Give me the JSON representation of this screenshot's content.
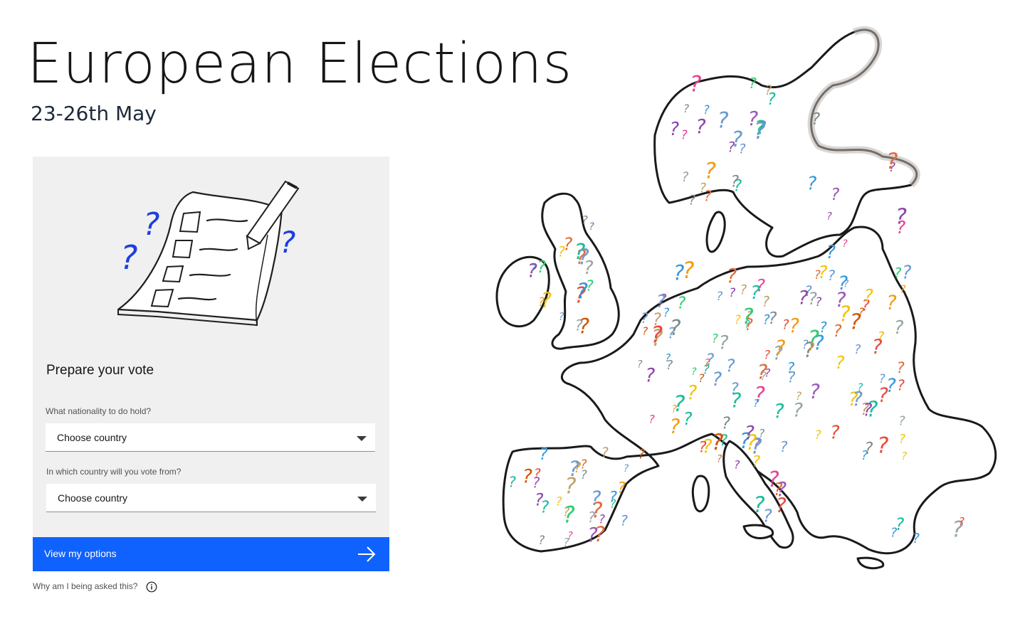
{
  "header": {
    "title": "European Elections",
    "subtitle": "23-26th May"
  },
  "card": {
    "title": "Prepare your vote",
    "nationality_label": "What nationality to do hold?",
    "nationality_value": "Choose country",
    "vote_country_label": "In which country will you vote from?",
    "vote_country_value": "Choose country",
    "cta_label": "View my options"
  },
  "help": {
    "text": "Why am I being asked this?"
  },
  "icons": {
    "illustration": "ballot-paper-with-pencil-and-question-marks",
    "select_arrow": "chevron-down-icon",
    "cta": "arrow-right-icon",
    "help": "info-icon",
    "map": "europe-map-with-question-marks"
  },
  "colors": {
    "primary": "#0f62fe",
    "card_background": "#f0f0f0",
    "text": "#161616",
    "label": "#525252"
  }
}
